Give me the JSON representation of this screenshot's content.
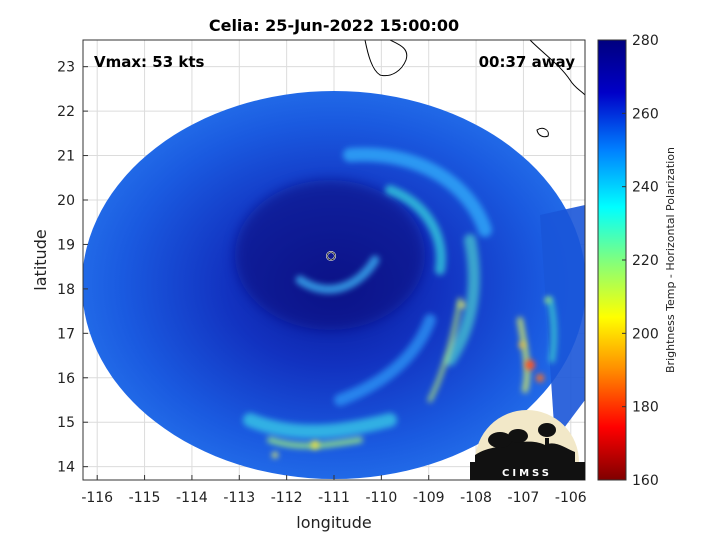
{
  "title": "Celia: 25-Jun-2022 15:00:00",
  "vmax_label": "Vmax: 53 kts",
  "time_offset_label": "00:37 away",
  "axes": {
    "xlabel": "longitude",
    "ylabel": "latitude",
    "xlim": [
      -116.3,
      -105.7
    ],
    "ylim": [
      13.7,
      23.6
    ],
    "xticks": [
      -116,
      -115,
      -114,
      -113,
      -112,
      -111,
      -110,
      -109,
      -108,
      -107,
      -106
    ],
    "yticks": [
      14,
      15,
      16,
      17,
      18,
      19,
      20,
      21,
      22,
      23
    ],
    "grid": true
  },
  "colorbar": {
    "label": "Brightness Temp - Horizontal Polarization",
    "range": [
      160,
      280
    ],
    "ticks": [
      160,
      180,
      200,
      220,
      240,
      260,
      280
    ],
    "colormap": [
      "#7f0000",
      "#ff0000",
      "#ff8c00",
      "#ffff00",
      "#7fff7f",
      "#00ffff",
      "#0080ff",
      "#0000c8",
      "#00007f"
    ]
  },
  "storm": {
    "name": "Celia",
    "center_lon": -111.0,
    "center_lat": 18.8
  },
  "logo": {
    "text": "CIMSS"
  }
}
